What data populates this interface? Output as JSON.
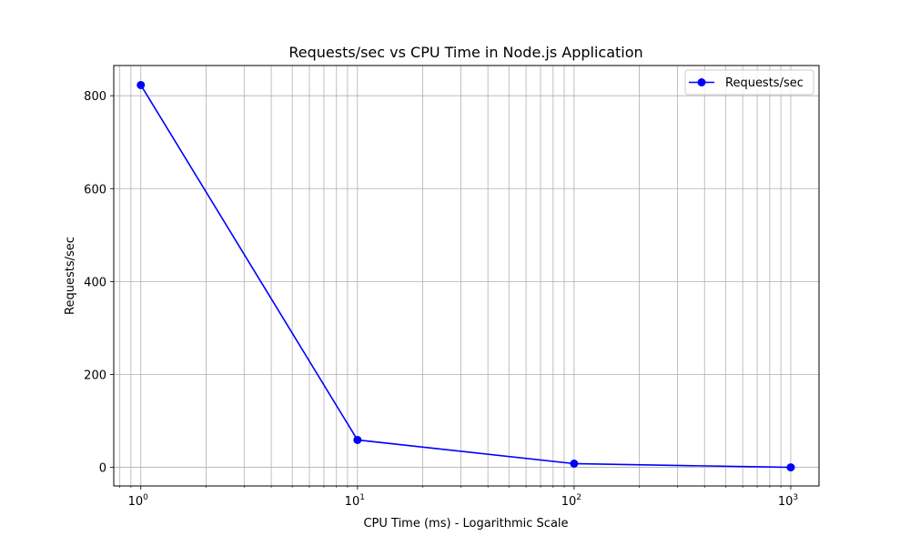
{
  "chart_data": {
    "type": "line",
    "title": "Requests/sec vs CPU Time in Node.js Application",
    "xlabel": "CPU Time (ms) - Logarithmic Scale",
    "ylabel": "Requests/sec",
    "xscale": "log",
    "xlim": [
      0.75,
      1350
    ],
    "ylim": [
      -40,
      865
    ],
    "grid": true,
    "legend_position": "top-right",
    "x_ticks": [
      {
        "base": "10",
        "exp": "0",
        "value": 1
      },
      {
        "base": "10",
        "exp": "1",
        "value": 10
      },
      {
        "base": "10",
        "exp": "2",
        "value": 100
      },
      {
        "base": "10",
        "exp": "3",
        "value": 1000
      }
    ],
    "y_ticks": [
      {
        "label": "0",
        "value": 0
      },
      {
        "label": "200",
        "value": 200
      },
      {
        "label": "400",
        "value": 400
      },
      {
        "label": "600",
        "value": 600
      },
      {
        "label": "800",
        "value": 800
      }
    ],
    "series": [
      {
        "name": "Requests/sec",
        "color": "#0000ff",
        "marker": "circle",
        "x": [
          1,
          10,
          100,
          1000
        ],
        "y": [
          823,
          59,
          8,
          0
        ]
      }
    ]
  }
}
